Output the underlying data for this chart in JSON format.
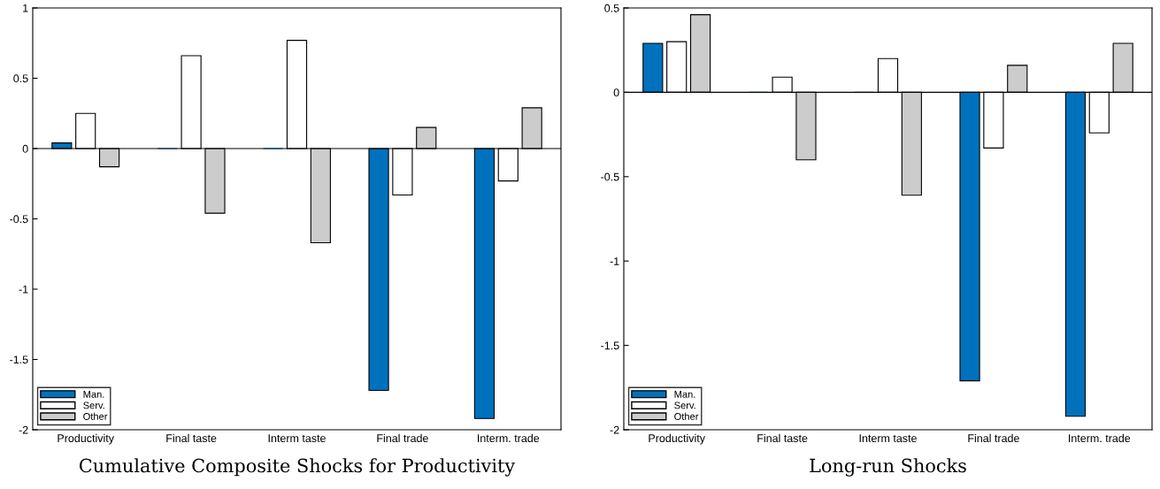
{
  "chart_data": [
    {
      "type": "bar",
      "title": "Cumulative Composite Shocks for Productivity",
      "categories": [
        "Productivity",
        "Final taste",
        "Interm taste",
        "Final trade",
        "Interm. trade"
      ],
      "series": [
        {
          "name": "Man.",
          "color": "#0072bd",
          "values": [
            0.04,
            0,
            0,
            -1.72,
            -1.92
          ]
        },
        {
          "name": "Serv.",
          "color": "#ffffff",
          "values": [
            0.25,
            0.66,
            0.77,
            -0.33,
            -0.23
          ]
        },
        {
          "name": "Other",
          "color": "#cccccc",
          "values": [
            -0.13,
            -0.46,
            -0.67,
            0.15,
            0.29
          ]
        }
      ],
      "ylim": [
        -2,
        1
      ],
      "yticks": [
        -2,
        -1.5,
        -1,
        -0.5,
        0,
        0.5,
        1
      ],
      "grid": false,
      "legend": "bottom left",
      "ref_lines": [
        {
          "axis": "y",
          "value": 0,
          "color": "#000000"
        }
      ]
    },
    {
      "type": "bar",
      "title": "Long-run Shocks",
      "categories": [
        "Productivity",
        "Final taste",
        "Interm taste",
        "Final trade",
        "Interm. trade"
      ],
      "series": [
        {
          "name": "Man.",
          "color": "#0072bd",
          "values": [
            0.29,
            0,
            0,
            -1.71,
            -1.92
          ]
        },
        {
          "name": "Serv.",
          "color": "#ffffff",
          "values": [
            0.3,
            0.09,
            0.2,
            -0.33,
            -0.24
          ]
        },
        {
          "name": "Other",
          "color": "#cccccc",
          "values": [
            0.46,
            -0.4,
            -0.61,
            0.16,
            0.29
          ]
        }
      ],
      "ylim": [
        -2,
        0.5
      ],
      "yticks": [
        -2,
        -1.5,
        -1,
        -0.5,
        0,
        0.5
      ],
      "grid": false,
      "legend": "bottom left",
      "ref_lines": [
        {
          "axis": "y",
          "value": 0,
          "color": "#000000"
        }
      ]
    }
  ]
}
